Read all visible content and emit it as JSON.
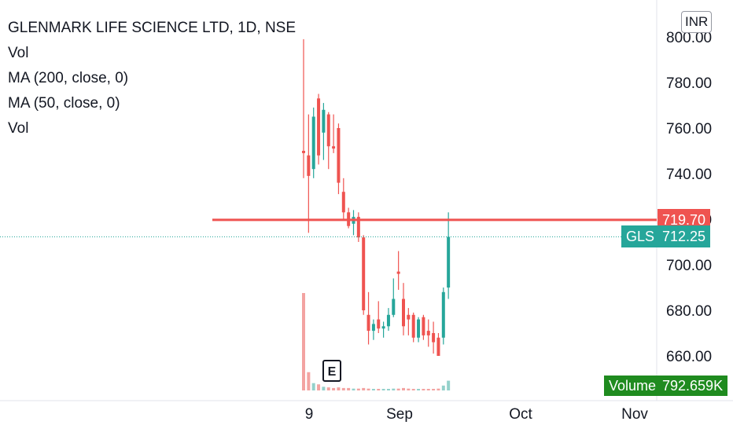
{
  "legend": {
    "title": "GLENMARK LIFE SCIENCE LTD, 1D, NSE",
    "lines": [
      "Vol",
      "MA (200, close, 0)",
      "MA (50, close, 0)",
      "Vol"
    ]
  },
  "currency_label": "INR",
  "earnings_marker": "E",
  "price_tags": {
    "horizontal_line": {
      "value_label": "719.70",
      "color": "#ef5350"
    },
    "last_price": {
      "symbol": "GLS",
      "value_label": "712.25",
      "color": "#26a69a"
    },
    "volume": {
      "name": "Volume",
      "value_label": "792.659K",
      "color": "#1f8b1f"
    }
  },
  "colors": {
    "up": "#26a69a",
    "down": "#ef5350",
    "up_vol": "#94d1cb",
    "down_vol": "#f3a3a1",
    "axis_text": "#131722"
  },
  "chart_data": {
    "type": "candlestick",
    "symbol": "GLENMARK LIFE SCIENCE LTD",
    "interval": "1D",
    "exchange": "NSE",
    "y_axis": {
      "ticks": [
        "800.00",
        "780.00",
        "760.00",
        "740.00",
        "720.00",
        "700.00",
        "680.00",
        "660.00"
      ],
      "range": [
        645,
        808
      ]
    },
    "x_axis": {
      "ticks": [
        "9",
        "Sep",
        "Oct",
        "Nov"
      ]
    },
    "horizontal_line": 719.7,
    "last_price": 712.25,
    "candles": [
      {
        "o": 750,
        "h": 799,
        "l": 738,
        "c": 749,
        "v": 8
      },
      {
        "o": 748,
        "h": 766,
        "l": 714,
        "c": 739,
        "v": 1.5
      },
      {
        "o": 742,
        "h": 769,
        "l": 738,
        "c": 765,
        "v": 0.6
      },
      {
        "o": 773,
        "h": 775,
        "l": 744,
        "c": 748,
        "v": 0.5
      },
      {
        "o": 758,
        "h": 771,
        "l": 746,
        "c": 768,
        "v": 0.3
      },
      {
        "o": 766,
        "h": 767,
        "l": 742,
        "c": 752,
        "v": 0.25
      },
      {
        "o": 752,
        "h": 766,
        "l": 749,
        "c": 751,
        "v": 0.2
      },
      {
        "o": 760,
        "h": 762,
        "l": 731,
        "c": 736,
        "v": 0.25
      },
      {
        "o": 732,
        "h": 738,
        "l": 720,
        "c": 723,
        "v": 0.2
      },
      {
        "o": 723,
        "h": 725,
        "l": 716,
        "c": 717,
        "v": 0.2
      },
      {
        "o": 718,
        "h": 724,
        "l": 713,
        "c": 721,
        "v": 0.15
      },
      {
        "o": 721,
        "h": 723,
        "l": 710,
        "c": 712,
        "v": 0.15
      },
      {
        "o": 712,
        "h": 713,
        "l": 678,
        "c": 680,
        "v": 0.2
      },
      {
        "o": 678,
        "h": 688,
        "l": 665,
        "c": 671,
        "v": 0.15
      },
      {
        "o": 671,
        "h": 676,
        "l": 667,
        "c": 674,
        "v": 0.1
      },
      {
        "o": 676,
        "h": 684,
        "l": 670,
        "c": 672,
        "v": 0.1
      },
      {
        "o": 672,
        "h": 675,
        "l": 668,
        "c": 673,
        "v": 0.1
      },
      {
        "o": 673,
        "h": 681,
        "l": 671,
        "c": 678,
        "v": 0.1
      },
      {
        "o": 678,
        "h": 694,
        "l": 677,
        "c": 685,
        "v": 0.15
      },
      {
        "o": 697,
        "h": 706,
        "l": 689,
        "c": 696,
        "v": 0.15
      },
      {
        "o": 685,
        "h": 692,
        "l": 669,
        "c": 673,
        "v": 0.2
      },
      {
        "o": 678,
        "h": 681,
        "l": 669,
        "c": 676,
        "v": 0.15
      },
      {
        "o": 678,
        "h": 679,
        "l": 666,
        "c": 668,
        "v": 0.1
      },
      {
        "o": 668,
        "h": 677,
        "l": 666,
        "c": 676,
        "v": 0.1
      },
      {
        "o": 677,
        "h": 678,
        "l": 667,
        "c": 669,
        "v": 0.1
      },
      {
        "o": 671,
        "h": 676,
        "l": 664,
        "c": 669,
        "v": 0.1
      },
      {
        "o": 670,
        "h": 675,
        "l": 661,
        "c": 666,
        "v": 0.1
      },
      {
        "o": 668,
        "h": 670,
        "l": 660,
        "c": 660,
        "v": 0.15
      },
      {
        "o": 668,
        "h": 690,
        "l": 665,
        "c": 688,
        "v": 0.4
      },
      {
        "o": 690,
        "h": 723,
        "l": 685,
        "c": 712.25,
        "v": 0.8
      }
    ]
  }
}
